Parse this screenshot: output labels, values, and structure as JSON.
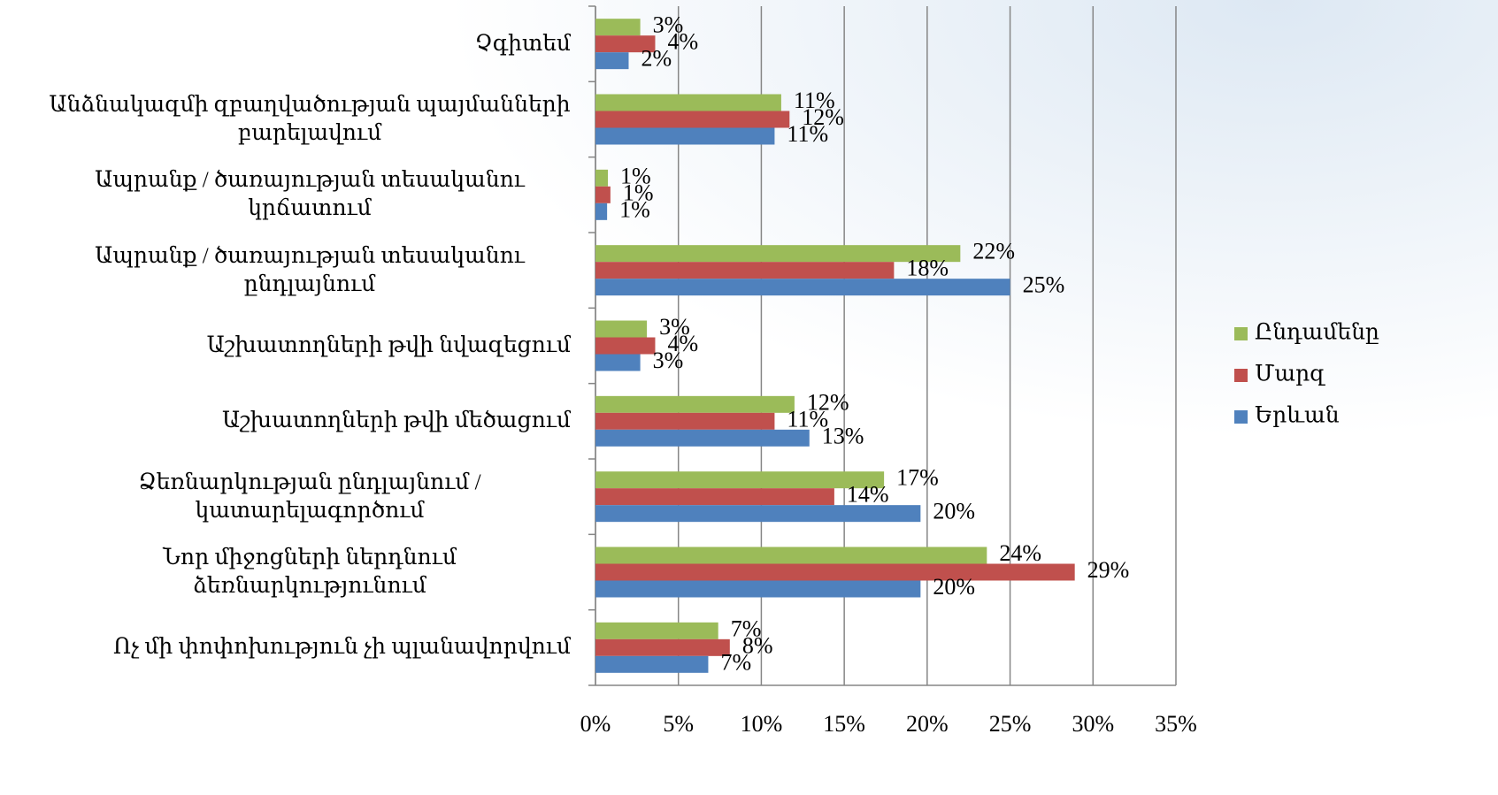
{
  "chart_data": {
    "type": "hbar",
    "categories": [
      "Չգիտեմ",
      "Անձնակազմի զբաղվածության պայմանների բարելավում",
      "Ապրանք / ծառայության  տեսականու կրճատում",
      "Ապրանք / ծառայության  տեսականու ընդլայնում",
      "Աշխատողների թվի նվազեցում",
      "Աշխատողների թվի մեծացում",
      "Ձեռնարկության  ընդլայնում / կատարելագործում",
      "Նոր միջոցների ներդնում ձեռնարկությունում",
      "Ոչ մի փոփոխություն չի պլանավորվում"
    ],
    "series": [
      {
        "name": "Ընդամենը",
        "color": "#9bbb59",
        "values": [
          2.7,
          11.2,
          0.75,
          22.0,
          3.1,
          12.0,
          17.4,
          23.6,
          7.4
        ],
        "value_labels": [
          "3%",
          "11%",
          "1%",
          "22%",
          "3%",
          "12%",
          "17%",
          "24%",
          "7%"
        ]
      },
      {
        "name": "Մարզ",
        "color": "#c0504d",
        "values": [
          3.6,
          11.7,
          0.9,
          18.0,
          3.6,
          10.8,
          14.4,
          28.9,
          8.1
        ],
        "value_labels": [
          "4%",
          "12%",
          "1%",
          "18%",
          "4%",
          "11%",
          "14%",
          "29%",
          "8%"
        ]
      },
      {
        "name": "Երևան",
        "color": "#4f81bd",
        "values": [
          2.0,
          10.8,
          0.7,
          25.0,
          2.7,
          12.9,
          19.6,
          19.6,
          6.8
        ],
        "value_labels": [
          "2%",
          "11%",
          "1%",
          "25%",
          "3%",
          "13%",
          "20%",
          "20%",
          "7%"
        ]
      }
    ],
    "xlim": [
      0,
      35
    ],
    "xticks": [
      {
        "value": 0,
        "label": "0%"
      },
      {
        "value": 5,
        "label": "5%"
      },
      {
        "value": 10,
        "label": "10%"
      },
      {
        "value": 15,
        "label": "15%"
      },
      {
        "value": 20,
        "label": "20%"
      },
      {
        "value": 25,
        "label": "25%"
      },
      {
        "value": 30,
        "label": "30%"
      },
      {
        "value": 35,
        "label": "35%"
      }
    ],
    "grid": true,
    "legend": "right"
  }
}
